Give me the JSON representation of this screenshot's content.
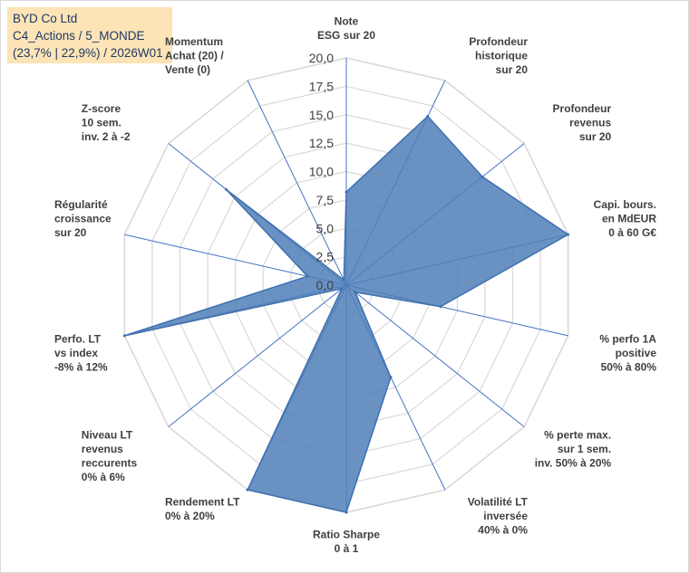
{
  "infobox": {
    "line1": "BYD Co Ltd",
    "line2": "C4_Actions / 5_MONDE",
    "line3": "(23,7% | 22,9%) / 2026W01"
  },
  "chart_data": {
    "type": "radar",
    "title": "",
    "rmin": 0,
    "rmax": 20,
    "tick_step": 2.5,
    "tick_labels": [
      "0,0",
      "2,5",
      "5,0",
      "7,5",
      "10,0",
      "12,5",
      "15,0",
      "17,5",
      "20,0"
    ],
    "axes": [
      {
        "label": [
          "Note",
          "ESG sur 20"
        ],
        "value": 8.2
      },
      {
        "label": [
          "Profondeur",
          "historique",
          "sur 20"
        ],
        "value": 16.5
      },
      {
        "label": [
          "Profondeur",
          "revenus",
          "sur 20"
        ],
        "value": 15.3
      },
      {
        "label": [
          "Capi. bours.",
          "en MdEUR",
          "0 à 60 G€"
        ],
        "value": 20.0
      },
      {
        "label": [
          "% perfo 1A",
          "positive",
          "50% à 80%"
        ],
        "value": 8.5
      },
      {
        "label": [
          "% perte max.",
          "sur 1 sem.",
          "inv. 50% à 20%"
        ],
        "value": 1.0
      },
      {
        "label": [
          "Volatilité LT",
          "inversée",
          "40% à 0%"
        ],
        "value": 9.0
      },
      {
        "label": [
          "Ratio Sharpe",
          "0 à 1"
        ],
        "value": 20.0
      },
      {
        "label": [
          "Rendement LT",
          "0% à 20%"
        ],
        "value": 20.0
      },
      {
        "label": [
          "Niveau LT",
          "revenus",
          "reccurents",
          "0% à 6%"
        ],
        "value": 0.5
      },
      {
        "label": [
          "Perfo. LT",
          "vs index",
          "-8% à 12%"
        ],
        "value": 20.0
      },
      {
        "label": [
          "Régularité",
          "croissance",
          "sur 20"
        ],
        "value": 3.5
      },
      {
        "label": [
          "Z-score",
          "10 sem.",
          "inv. 2 à -2"
        ],
        "value": 13.5
      },
      {
        "label": [
          "Momentum",
          "Achat (20) /",
          "Vente (0)"
        ],
        "value": 0.5
      }
    ],
    "colors": {
      "fill": "#4f7fb8",
      "stroke": "#3f6fb0",
      "spoke": "#4472c4",
      "grid": "#d9d9d9"
    }
  }
}
